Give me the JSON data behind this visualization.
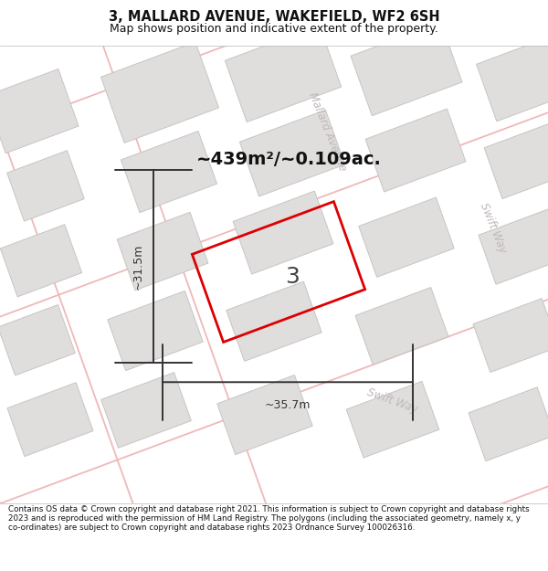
{
  "title": "3, MALLARD AVENUE, WAKEFIELD, WF2 6SH",
  "subtitle": "Map shows position and indicative extent of the property.",
  "footer": "Contains OS data © Crown copyright and database right 2021. This information is subject to Crown copyright and database rights 2023 and is reproduced with the permission of HM Land Registry. The polygons (including the associated geometry, namely x, y co-ordinates) are subject to Crown copyright and database rights 2023 Ordnance Survey 100026316.",
  "area_label": "~439m²/~0.109ac.",
  "property_number": "3",
  "dim_width": "~35.7m",
  "dim_height": "~31.5m",
  "map_bg": "#f7f4f4",
  "road_color": "#f0b8b8",
  "building_fill": "#e0dddd",
  "building_edge": "#c8c4c4",
  "property_outline": "#dd0000",
  "dim_line_color": "#333333",
  "street_label_color": "#c0b8b8",
  "title_color": "#111111",
  "footer_color": "#111111",
  "title_fontsize": 10.5,
  "subtitle_fontsize": 9,
  "footer_fontsize": 6.3,
  "area_fontsize": 14,
  "number_fontsize": 18,
  "dim_fontsize": 9,
  "street_fontsize": 8.5
}
